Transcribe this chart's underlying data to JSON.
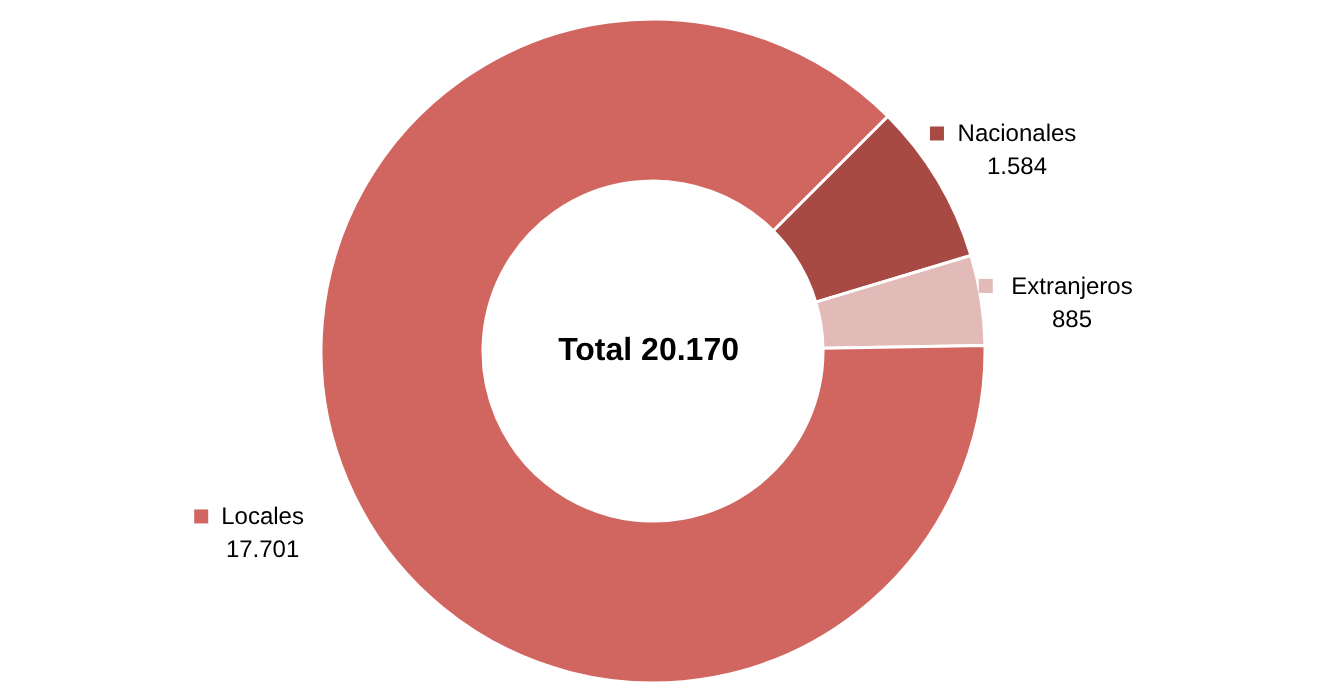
{
  "chart_data": {
    "type": "donut",
    "categories": [
      "Nacionales",
      "Extranjeros",
      "Locales"
    ],
    "values": [
      1584,
      885,
      17701
    ],
    "colors": [
      "#a84a44",
      "#e2bab7",
      "#d0665f"
    ],
    "value_labels": [
      "1.584",
      "885",
      "17.701"
    ],
    "annotations": [
      "Total  20.170"
    ],
    "legend": "right"
  }
}
